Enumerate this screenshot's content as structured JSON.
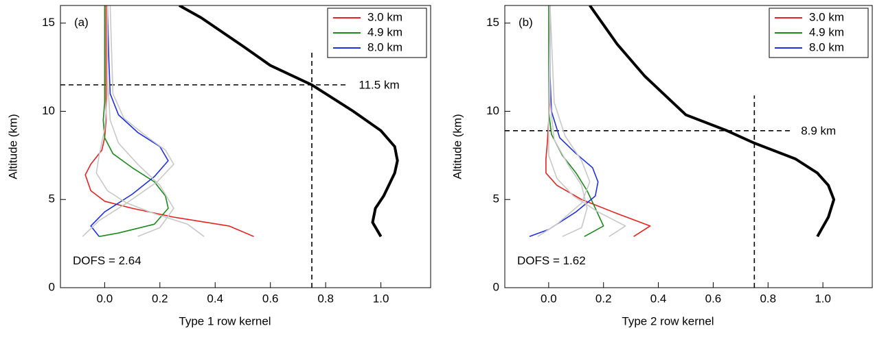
{
  "chart_data": [
    {
      "type": "line",
      "panel_label": "(a)",
      "x_label": "Type 1 row kernel",
      "y_label": "Altitude (km)",
      "xlim": [
        -0.16,
        1.18
      ],
      "ylim": [
        0,
        16
      ],
      "xticks": [
        {
          "value": 0,
          "label": "0.0"
        },
        0.2,
        0.4,
        0.6,
        0.8,
        {
          "value": 1,
          "label": "1.0"
        }
      ],
      "yticks": [
        0,
        5,
        10,
        15
      ],
      "legend": "upper right",
      "series": [
        {
          "name": "3.0 km",
          "color": "#e8201e",
          "x": [
            0.54,
            0.45,
            0.25,
            0.1,
            0.0,
            -0.05,
            -0.07,
            -0.05,
            -0.01,
            0.0,
            0.005,
            0.005,
            0.005,
            0.005
          ],
          "values": [
            2.9,
            3.5,
            4.0,
            4.5,
            4.9,
            5.5,
            6.4,
            7.0,
            7.8,
            8.5,
            9.5,
            11,
            13,
            16
          ]
        },
        {
          "name": "4.9 km",
          "color": "#1a8a1a",
          "x": [
            -0.02,
            0.05,
            0.18,
            0.23,
            0.22,
            0.18,
            0.1,
            0.03,
            0.0,
            -0.005,
            0.0,
            0.0,
            0.0,
            0.0
          ],
          "values": [
            2.9,
            3.1,
            3.6,
            4.5,
            5.2,
            6.0,
            6.8,
            7.6,
            8.5,
            9.5,
            10.5,
            12,
            14,
            16
          ]
        },
        {
          "name": "8.0 km",
          "color": "#1c2ee8",
          "x": [
            -0.02,
            -0.05,
            0.0,
            0.1,
            0.18,
            0.23,
            0.2,
            0.12,
            0.05,
            0.02,
            0.015,
            0.01
          ],
          "values": [
            2.9,
            3.5,
            4.3,
            5.3,
            6.3,
            7.2,
            8.0,
            8.8,
            9.8,
            11,
            13,
            16
          ]
        },
        {
          "color": "#c8c8c8",
          "x": [
            0.36,
            0.3,
            0.18,
            0.08,
            0.01,
            -0.03,
            -0.02,
            0.0,
            0.01,
            0.01
          ],
          "values": [
            2.9,
            3.6,
            4.2,
            4.8,
            5.5,
            6.5,
            7.5,
            9.0,
            11,
            16
          ]
        },
        {
          "color": "#c8c8c8",
          "x": [
            0.12,
            0.2,
            0.25,
            0.2,
            0.12,
            0.05,
            0.02,
            0.01,
            0.01
          ],
          "values": [
            2.9,
            3.4,
            4.5,
            5.8,
            7.0,
            8.2,
            9.5,
            12,
            16
          ]
        },
        {
          "color": "#c8c8c8",
          "x": [
            -0.08,
            -0.02,
            0.08,
            0.19,
            0.25,
            0.22,
            0.15,
            0.07,
            0.03,
            0.02
          ],
          "values": [
            2.9,
            3.8,
            4.8,
            6.0,
            7.0,
            7.8,
            8.6,
            9.6,
            11,
            16
          ]
        },
        {
          "color": "#000000",
          "width": 4,
          "x": [
            1.0,
            0.97,
            0.98,
            1.01,
            1.05,
            1.06,
            1.05,
            1.0,
            0.9,
            0.75,
            0.6,
            0.5,
            0.35,
            0.27
          ],
          "values": [
            2.9,
            3.7,
            4.5,
            5.2,
            6.5,
            7.2,
            8.0,
            8.9,
            10.0,
            11.5,
            12.6,
            13.7,
            15.3,
            16
          ]
        }
      ],
      "hline": 11.5,
      "vline": 0.75,
      "annotation": "11.5 km",
      "dofs_text": "DOFS = 2.64"
    },
    {
      "type": "line",
      "panel_label": "(b)",
      "x_label": "Type 2 row kernel",
      "y_label": "Altitude (km)",
      "xlim": [
        -0.16,
        1.18
      ],
      "ylim": [
        0,
        16
      ],
      "xticks": [
        {
          "value": 0,
          "label": "0.0"
        },
        0.2,
        0.4,
        0.6,
        0.8,
        {
          "value": 1,
          "label": "1.0"
        }
      ],
      "yticks": [
        0,
        5,
        10,
        15
      ],
      "legend": "upper right",
      "series": [
        {
          "name": "3.0 km",
          "color": "#e8201e",
          "x": [
            0.31,
            0.37,
            0.25,
            0.12,
            0.03,
            -0.01,
            -0.01,
            -0.005,
            0.0,
            0.003,
            0.003,
            0.005
          ],
          "values": [
            2.9,
            3.5,
            4.2,
            5.0,
            5.8,
            6.5,
            7.3,
            8.2,
            9.5,
            11,
            13,
            16
          ]
        },
        {
          "name": "4.9 km",
          "color": "#1a8a1a",
          "x": [
            0.13,
            0.2,
            0.17,
            0.14,
            0.1,
            0.05,
            0.01,
            0.0,
            0.0,
            0.0
          ],
          "values": [
            2.9,
            3.5,
            4.5,
            5.5,
            6.5,
            7.5,
            8.7,
            10,
            12,
            16
          ]
        },
        {
          "name": "8.0 km",
          "color": "#1c2ee8",
          "x": [
            -0.07,
            0.0,
            0.1,
            0.17,
            0.18,
            0.16,
            0.1,
            0.04,
            0.01,
            0.005,
            0.003
          ],
          "values": [
            2.9,
            3.3,
            4.3,
            5.2,
            6.0,
            6.8,
            7.6,
            8.5,
            10,
            12,
            16
          ]
        },
        {
          "color": "#c8c8c8",
          "x": [
            0.22,
            0.28,
            0.18,
            0.09,
            0.03,
            0.0,
            0.0,
            0.005
          ],
          "values": [
            2.9,
            3.5,
            4.3,
            5.2,
            6.2,
            7.5,
            10,
            16
          ]
        },
        {
          "color": "#c8c8c8",
          "x": [
            0.05,
            0.12,
            0.14,
            0.12,
            0.07,
            0.02,
            0.005,
            0.003
          ],
          "values": [
            2.9,
            3.4,
            4.5,
            5.8,
            7.0,
            8.4,
            10.5,
            16
          ]
        },
        {
          "color": "#c8c8c8",
          "x": [
            -0.04,
            0.03,
            0.12,
            0.15,
            0.12,
            0.06,
            0.02,
            0.005
          ],
          "values": [
            2.9,
            3.6,
            4.8,
            6.0,
            7.2,
            8.6,
            10.5,
            16
          ]
        },
        {
          "color": "#000000",
          "width": 4,
          "x": [
            0.98,
            1.02,
            1.04,
            1.02,
            0.98,
            0.9,
            0.75,
            0.65,
            0.5,
            0.35,
            0.25,
            0.15
          ],
          "values": [
            2.9,
            4.0,
            5.0,
            5.8,
            6.5,
            7.3,
            8.2,
            8.9,
            9.8,
            12,
            13.8,
            16
          ]
        }
      ],
      "hline": 8.9,
      "vline": 0.75,
      "annotation": "8.9 km",
      "dofs_text": "DOFS = 1.62"
    }
  ]
}
